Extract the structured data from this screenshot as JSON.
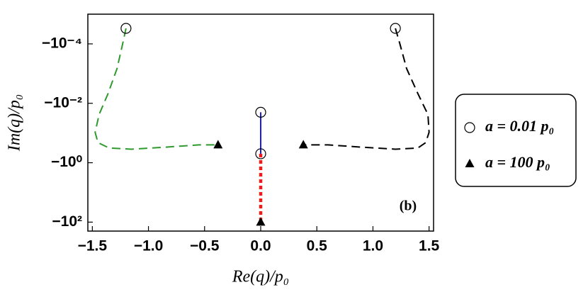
{
  "chart_data": {
    "type": "line",
    "x_label": "Re(q)/p₀",
    "y_label": "Im(q)/p₀",
    "annotation": "(b)",
    "xlim": [
      -1.54,
      1.54
    ],
    "xticks": [
      {
        "value": -1.5,
        "label": "−1.5"
      },
      {
        "value": -1,
        "label": "−1.0"
      },
      {
        "value": -0.5,
        "label": "−0.5"
      },
      {
        "value": 0,
        "label": "0.0"
      },
      {
        "value": 0.5,
        "label": "0.5"
      },
      {
        "value": 1,
        "label": "1.0"
      },
      {
        "value": 1.5,
        "label": "1.5"
      }
    ],
    "yscale": "log",
    "ylim": [
      -200,
      -1e-05
    ],
    "yticks": [
      {
        "value": -0.0001,
        "label": "−10⁻⁴"
      },
      {
        "value": -0.01,
        "label": "−10⁻²"
      },
      {
        "value": -1,
        "label": "−10⁰"
      },
      {
        "value": -100,
        "label": "−10²"
      }
    ],
    "series": [
      {
        "color": "#2e9a2e",
        "dash": "dashed",
        "x": [
          -1.2,
          -1.23,
          -1.28,
          -1.36,
          -1.44,
          -1.475,
          -1.45,
          -1.35,
          -1.15,
          -0.85,
          -0.55,
          -0.38
        ],
        "values": [
          -3e-05,
          -0.0001,
          -0.00068,
          -0.0047,
          -0.024,
          -0.095,
          -0.21,
          -0.32,
          -0.35,
          -0.3,
          -0.25,
          -0.25
        ]
      },
      {
        "color": "#000000",
        "dash": "dashed",
        "x": [
          1.2,
          1.24,
          1.3,
          1.4,
          1.49,
          1.5,
          1.47,
          1.4,
          1.2,
          0.9,
          0.6,
          0.38
        ],
        "values": [
          -3e-05,
          -0.0001,
          -0.00068,
          -0.0047,
          -0.024,
          -0.095,
          -0.21,
          -0.32,
          -0.35,
          -0.3,
          -0.25,
          -0.25
        ]
      },
      {
        "color": "#1a1ae6",
        "dash": "solid",
        "x": [
          0,
          0
        ],
        "values": [
          -0.02,
          -0.5
        ]
      },
      {
        "color": "#ee1c1c",
        "dash": "dotted",
        "x": [
          0,
          0
        ],
        "values": [
          -0.5,
          -100
        ]
      },
      {
        "name": "a = 0.01 p₀",
        "marker": "circle",
        "color": "#000000",
        "x": [
          -1.2,
          1.2,
          0,
          0
        ],
        "values": [
          -3e-05,
          -3e-05,
          -0.02,
          -0.5
        ]
      },
      {
        "name": "a = 100 p₀",
        "marker": "triangle",
        "color": "#000000",
        "x": [
          -0.38,
          0.38,
          0
        ],
        "values": [
          -0.25,
          -0.25,
          -100
        ]
      }
    ]
  }
}
